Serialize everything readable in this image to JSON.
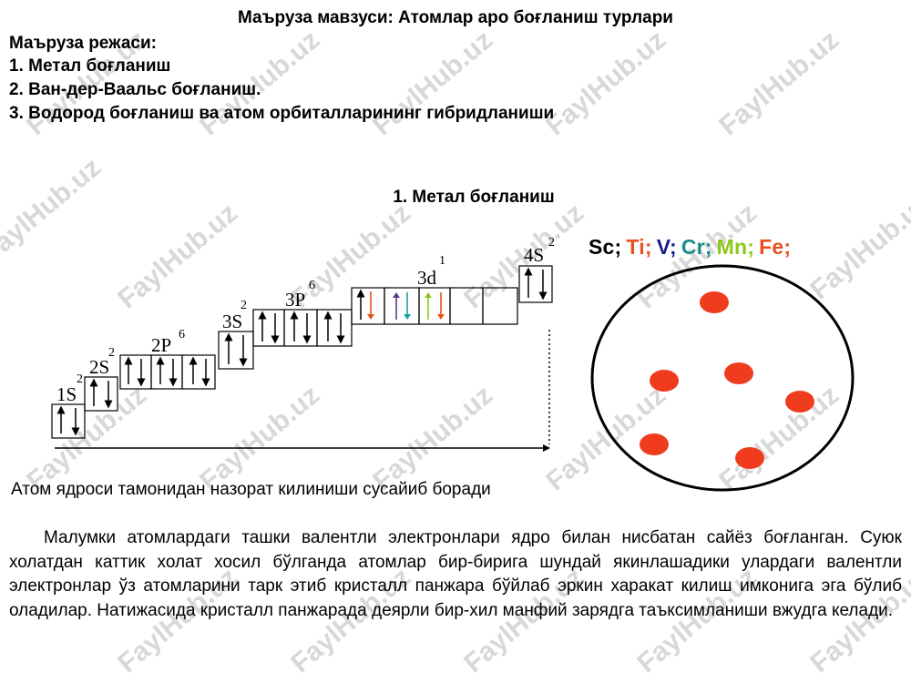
{
  "watermark": "FaylHub.uz",
  "title": "Маъруза мавзуси: Атомлар аро боғланиш турлари",
  "plan": {
    "heading": "Маъруза режаси:",
    "items": [
      "1. Метал боғланиш",
      "2. Ван-дер-Ваальс боғланиш.",
      "3. Водород боғланиш ва атом орбиталларининг гибридланиши"
    ]
  },
  "section_title": "1. Метал боғланиш",
  "orbitals": [
    {
      "label": "1S",
      "sup": "2"
    },
    {
      "label": "2S",
      "sup": "2"
    },
    {
      "label": "2P",
      "sup": "6"
    },
    {
      "label": "3S",
      "sup": "2"
    },
    {
      "label": "3P",
      "sup": "6"
    },
    {
      "label": "3d",
      "sup": "1"
    },
    {
      "label": "4S",
      "sup": "2"
    }
  ],
  "elements": [
    {
      "symbol": "Sc;",
      "color": "#000000"
    },
    {
      "symbol": "Ti;",
      "color": "#e8501c"
    },
    {
      "symbol": "V;",
      "color": "#1a1a8c"
    },
    {
      "symbol": "Cr;",
      "color": "#1a8c8c"
    },
    {
      "symbol": "Mn;",
      "color": "#8cc81a"
    },
    {
      "symbol": "Fe;",
      "color": "#e8501c"
    }
  ],
  "colors": {
    "nucleus": "#f03c1e",
    "arrow_orange": "#e8501c",
    "arrow_purple": "#5a3c8c",
    "arrow_teal": "#1aa0a0",
    "arrow_green": "#8cc81a"
  },
  "caption": "Атом ядроси тамонидан назорат килиниши сусайиб боради",
  "paragraph": "Малумки атомлардаги ташки валентли электронлари ядро билан нисбатан сайёз боғланган. Суюк холатдан каттик холат хосил бўлганда атомлар бир-бирига шундай якинлашадики улардаги валентли электронлар ўз атомларини тарк этиб кристалл панжара бўйлаб эркин харакат килиш имконига эга бўлиб оладилар. Натижасида кристалл панжарада деярли бир-хил манфий зарядга таъксимланиши вжудга келади."
}
